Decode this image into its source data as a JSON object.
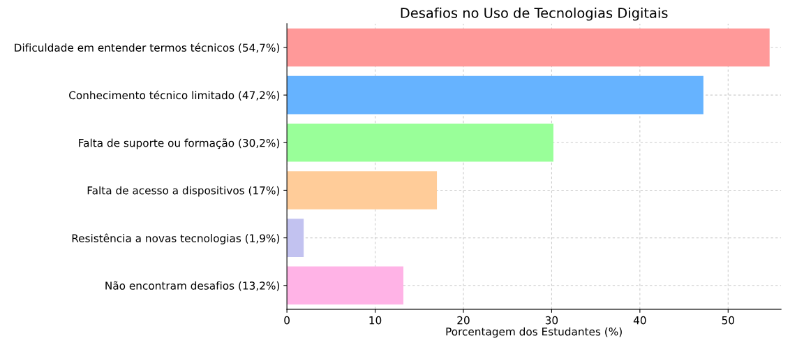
{
  "chart_data": {
    "type": "bar",
    "orientation": "horizontal",
    "title": "Desafios no Uso de Tecnologias Digitais",
    "xlabel": "Porcentagem dos Estudantes (%)",
    "categories": [
      "Dificuldade em entender termos técnicos (54,7%)",
      "Conhecimento técnico limitado (47,2%)",
      "Falta de suporte ou formação (30,2%)",
      "Falta de acesso a dispositivos (17%)",
      "Resistência a novas tecnologias (1,9%)",
      "Não encontram desafios (13,2%)"
    ],
    "values": [
      54.7,
      47.2,
      30.2,
      17,
      1.9,
      13.2
    ],
    "colors": [
      "#ff9999",
      "#66b3ff",
      "#99ff99",
      "#ffcc99",
      "#c2c2f0",
      "#ffb3e6"
    ],
    "xlim": [
      0,
      56
    ],
    "xticks": [
      0,
      10,
      20,
      30,
      40,
      50
    ],
    "grid": true
  }
}
